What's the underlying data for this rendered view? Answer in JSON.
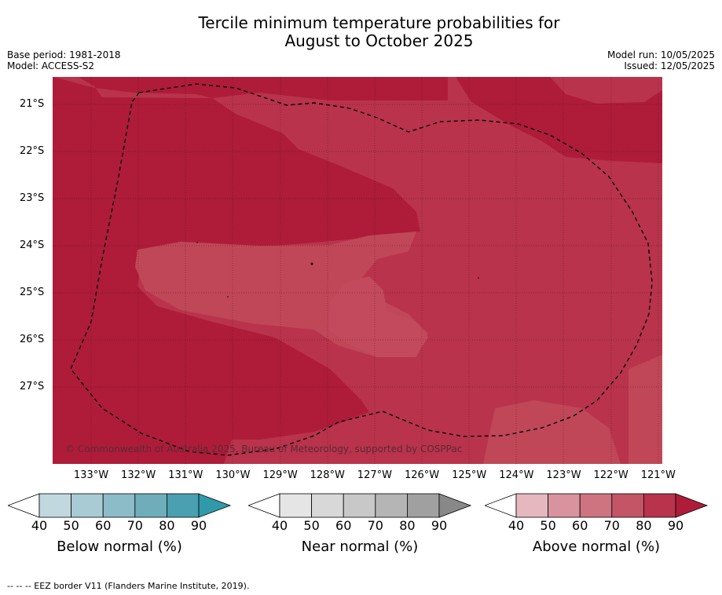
{
  "title_line1": "Tercile minimum temperature probabilities for",
  "title_line2": "August to October 2025",
  "meta": {
    "base_period": "Base period: 1981-2018",
    "model": "Model: ACCESS-S2",
    "model_run": "Model run: 10/05/2025",
    "issued": "Issued: 12/05/2025"
  },
  "lat_labels": [
    "21°S",
    "22°S",
    "23°S",
    "24°S",
    "25°S",
    "26°S",
    "27°S"
  ],
  "lon_labels": [
    "133°W",
    "132°W",
    "131°W",
    "130°W",
    "129°W",
    "128°W",
    "127°W",
    "126°W",
    "125°W",
    "124°W",
    "123°W",
    "122°W",
    "121°W"
  ],
  "copyright": "© Commonwealth of Australia 2025, Bureau of Meteorology, supported by COSPPac",
  "colorbars": [
    {
      "title": "Below normal (%)",
      "ticks": [
        "40",
        "50",
        "60",
        "70",
        "80",
        "90"
      ],
      "colors": [
        "#c1d8df",
        "#a9cbd3",
        "#8cbcc7",
        "#6fadbb",
        "#4aa0b1",
        "#309aaa"
      ]
    },
    {
      "title": "Near normal (%)",
      "ticks": [
        "40",
        "50",
        "60",
        "70",
        "80",
        "90"
      ],
      "colors": [
        "#e5e5e5",
        "#d8d8d8",
        "#c8c8c8",
        "#b5b5b5",
        "#a0a0a0",
        "#888888"
      ]
    },
    {
      "title": "Above normal (%)",
      "ticks": [
        "40",
        "50",
        "60",
        "70",
        "80",
        "90"
      ],
      "colors": [
        "#e5b8c0",
        "#d9939e",
        "#cd7480",
        "#c45566",
        "#b9334c",
        "#ae1c3a"
      ]
    }
  ],
  "footer": "--  --  -- EEZ border V11 (Flanders Marine Institute, 2019).",
  "map_colors": {
    "p80": "#ae1c3a",
    "p70": "#b9334c",
    "p60": "#c04758"
  }
}
